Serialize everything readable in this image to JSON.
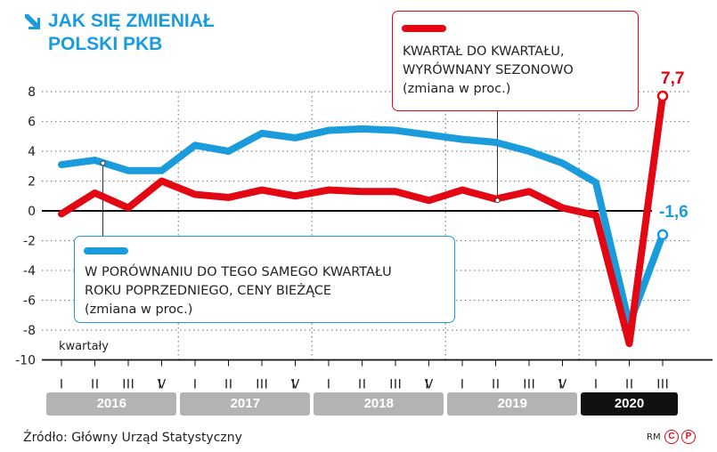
{
  "title": {
    "lines": [
      "JAK SIĘ ZMIENIAŁ",
      "POLSKI PKB"
    ],
    "icon": "arrow-down-right-icon"
  },
  "colors": {
    "accent_blue": "#1a9bdc",
    "accent_red": "#e30613",
    "year_inactive": "#b3b3b3",
    "year_active": "#111111"
  },
  "chart_data": {
    "type": "line",
    "title": "JAK SIĘ ZMIENIAŁ POLSKI PKB",
    "xlabel": "kwartały",
    "ylabel": "",
    "ylim": [
      -10,
      8
    ],
    "yticks": [
      8,
      6,
      4,
      2,
      0,
      -2,
      -4,
      -6,
      -8,
      -10
    ],
    "grid": true,
    "x": [
      "I",
      "II",
      "III",
      "IV",
      "I",
      "II",
      "III",
      "IV",
      "I",
      "II",
      "III",
      "IV",
      "I",
      "II",
      "III",
      "IV",
      "I",
      "II",
      "III"
    ],
    "years": [
      {
        "label": "2016",
        "quarters": 4
      },
      {
        "label": "2017",
        "quarters": 4
      },
      {
        "label": "2018",
        "quarters": 4
      },
      {
        "label": "2019",
        "quarters": 4
      },
      {
        "label": "2020",
        "quarters": 3,
        "active": true
      }
    ],
    "series": [
      {
        "name": "W PORÓWNANIU DO TEGO SAMEGO KWARTAŁU ROKU POPRZEDNIEGO, CENY BIEŻĄCE (zmiana w proc.)",
        "color": "#1a9bdc",
        "values": [
          3.1,
          3.4,
          2.7,
          2.7,
          4.4,
          4.0,
          5.2,
          4.9,
          5.4,
          5.5,
          5.4,
          5.1,
          4.8,
          4.6,
          4.0,
          3.2,
          1.9,
          -7.6,
          -1.6
        ],
        "end_label": "-1,6"
      },
      {
        "name": "KWARTAŁ DO KWARTAŁU, WYRÓWNANY SEZONOWO (zmiana w proc.)",
        "color": "#e30613",
        "values": [
          -0.2,
          1.2,
          0.2,
          2.0,
          1.1,
          0.9,
          1.4,
          1.0,
          1.4,
          1.3,
          1.3,
          0.7,
          1.4,
          0.8,
          1.3,
          0.2,
          -0.3,
          -8.9,
          7.7
        ],
        "end_label": "7,7"
      }
    ],
    "legend_placement": "inside annotations"
  },
  "legend": {
    "red": {
      "lines": [
        "KWARTAŁ DO KWARTAŁU,",
        "WYRÓWNANY SEZONOWO",
        "(zmiana w proc.)"
      ]
    },
    "blue": {
      "lines": [
        "W PORÓWNANIU DO TEGO SAMEGO KWARTAŁU",
        "ROKU POPRZEDNIEGO, CENY BIEŻĄCE",
        "(zmiana w proc.)"
      ]
    }
  },
  "footer": {
    "source": "Źródło: Główny Urząd Statystyczny",
    "credit": "RM",
    "logo_c": "C",
    "logo_p": "P"
  }
}
